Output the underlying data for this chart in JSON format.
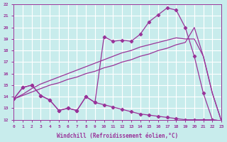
{
  "bg_color": "#c8ecec",
  "line_color": "#993399",
  "grid_color": "#ffffff",
  "xlabel": "Windchill (Refroidissement éolien,°C)",
  "xlim": [
    0,
    23
  ],
  "ylim": [
    12,
    22
  ],
  "xticks": [
    0,
    1,
    2,
    3,
    4,
    5,
    6,
    7,
    8,
    9,
    10,
    11,
    12,
    13,
    14,
    15,
    16,
    17,
    18,
    19,
    20,
    21,
    22,
    23
  ],
  "yticks": [
    12,
    13,
    14,
    15,
    16,
    17,
    18,
    19,
    20,
    21,
    22
  ],
  "lineA_x": [
    0,
    1,
    2,
    3,
    4,
    5,
    6,
    7,
    8,
    9,
    10,
    11,
    12,
    13,
    14,
    15,
    16,
    17,
    18,
    19,
    20,
    21,
    22,
    23
  ],
  "lineA_y": [
    13.8,
    14.8,
    15.0,
    14.1,
    13.7,
    12.8,
    13.0,
    12.8,
    14.0,
    13.5,
    13.3,
    13.1,
    12.9,
    12.7,
    12.5,
    12.4,
    12.3,
    12.2,
    12.1,
    12.0,
    12.0,
    12.0,
    12.0,
    11.9
  ],
  "lineB_x": [
    0,
    1,
    2,
    3,
    4,
    5,
    6,
    7,
    8,
    9,
    10,
    11,
    12,
    13,
    14,
    15,
    16,
    17,
    18,
    19,
    20,
    21,
    22,
    23
  ],
  "lineB_y": [
    13.8,
    14.1,
    14.4,
    14.7,
    15.0,
    15.2,
    15.5,
    15.7,
    16.0,
    16.2,
    16.5,
    16.7,
    17.0,
    17.2,
    17.5,
    17.7,
    18.0,
    18.2,
    18.5,
    18.7,
    20.0,
    17.5,
    14.3,
    11.9
  ],
  "lineC_x": [
    0,
    1,
    2,
    3,
    4,
    5,
    6,
    7,
    8,
    9,
    10,
    11,
    12,
    13,
    14,
    15,
    16,
    17,
    18,
    19,
    20,
    21,
    22,
    23
  ],
  "lineC_y": [
    13.8,
    14.2,
    14.7,
    15.1,
    15.4,
    15.7,
    16.0,
    16.3,
    16.6,
    16.9,
    17.2,
    17.5,
    17.8,
    18.0,
    18.3,
    18.5,
    18.7,
    18.9,
    19.1,
    19.0,
    19.0,
    17.5,
    14.3,
    11.9
  ],
  "lineD_x": [
    0,
    1,
    2,
    3,
    4,
    5,
    6,
    7,
    8,
    9,
    10,
    11,
    12,
    13,
    14,
    15,
    16,
    17,
    18,
    19,
    20,
    21,
    22,
    23
  ],
  "lineD_y": [
    13.8,
    14.8,
    15.0,
    14.1,
    13.7,
    12.8,
    13.0,
    12.8,
    14.0,
    13.5,
    19.2,
    18.8,
    18.9,
    18.8,
    19.4,
    20.5,
    21.1,
    21.7,
    21.5,
    20.0,
    17.5,
    14.3,
    12.0,
    11.9
  ]
}
